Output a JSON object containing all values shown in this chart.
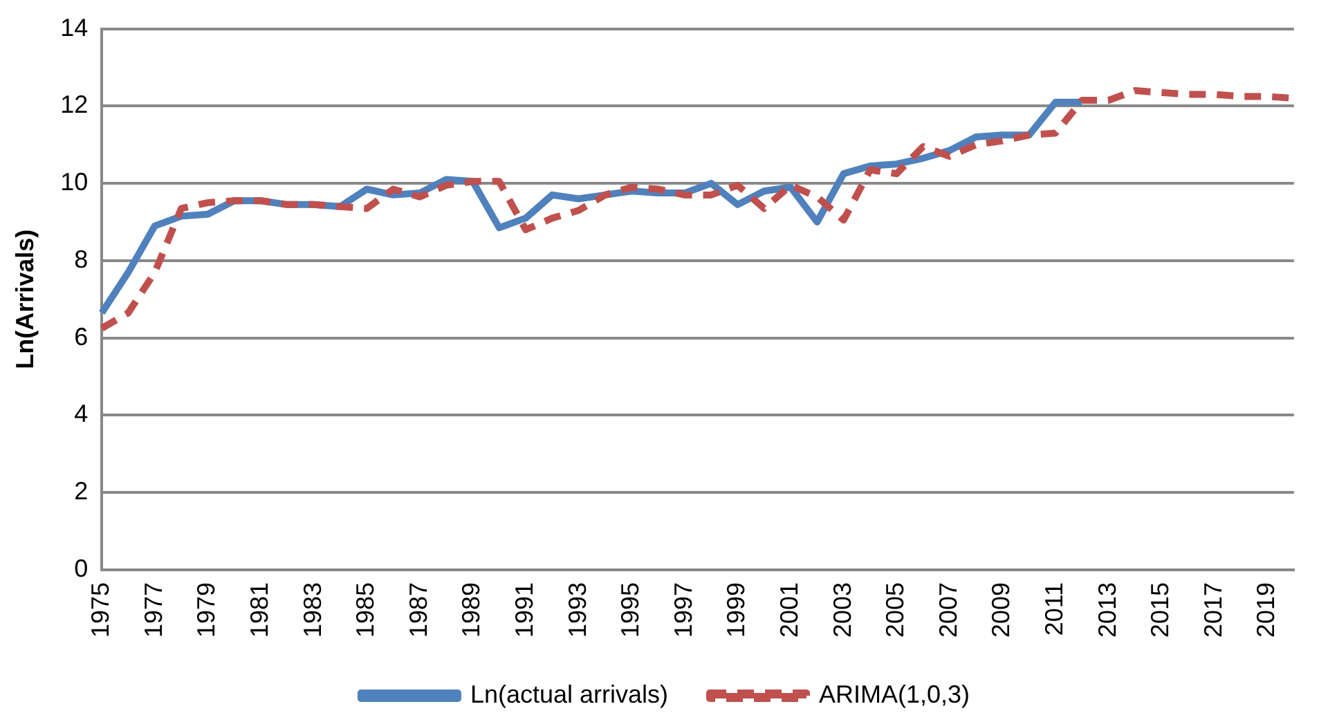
{
  "chart_data": {
    "type": "line",
    "ylabel": "Ln(Arrivals)",
    "categories": [
      "1975",
      null,
      "1977",
      null,
      "1979",
      null,
      "1981",
      null,
      "1983",
      null,
      "1985",
      null,
      "1987",
      null,
      "1989",
      null,
      "1991",
      null,
      "1993",
      null,
      "1995",
      null,
      "1997",
      null,
      "1999",
      null,
      "2001",
      null,
      "2003",
      null,
      "2005",
      null,
      "2007",
      null,
      "2009",
      null,
      "2011",
      null,
      "2013",
      null,
      "2015",
      null,
      "2017",
      null,
      "2019",
      null
    ],
    "series": [
      {
        "name": "Ln(actual arrivals)",
        "color": "#4f81bd",
        "line_style": "solid",
        "values": [
          6.65,
          7.7,
          8.9,
          9.15,
          9.2,
          9.55,
          9.55,
          9.45,
          9.45,
          9.4,
          9.85,
          9.7,
          9.75,
          10.1,
          10.05,
          8.85,
          9.1,
          9.7,
          9.6,
          9.7,
          9.8,
          9.75,
          9.75,
          10.0,
          9.45,
          9.8,
          9.9,
          9.0,
          10.25,
          10.45,
          10.5,
          10.65,
          10.85,
          11.2,
          11.25,
          11.25,
          12.1,
          12.1,
          null,
          null,
          null,
          null,
          null,
          null,
          null,
          null
        ]
      },
      {
        "name": "ARIMA(1,0,3)",
        "color": "#c0504d",
        "line_style": "dashed",
        "values": [
          6.25,
          6.65,
          7.7,
          9.35,
          9.5,
          9.55,
          9.55,
          9.45,
          9.45,
          9.4,
          9.35,
          9.85,
          9.65,
          9.95,
          10.05,
          10.05,
          8.8,
          9.1,
          9.3,
          9.7,
          9.9,
          9.85,
          9.7,
          9.7,
          9.95,
          9.35,
          9.95,
          9.65,
          9.05,
          10.35,
          10.25,
          10.95,
          10.7,
          11.0,
          11.1,
          11.25,
          11.3,
          12.15,
          12.15,
          12.4,
          12.35,
          12.3,
          12.3,
          12.25,
          12.25,
          12.2
        ]
      }
    ],
    "ylim": [
      0,
      14
    ],
    "yticks": [
      0,
      2,
      4,
      6,
      8,
      10,
      12,
      14
    ],
    "grid": "y",
    "legend": "bottom",
    "marker": "none"
  }
}
